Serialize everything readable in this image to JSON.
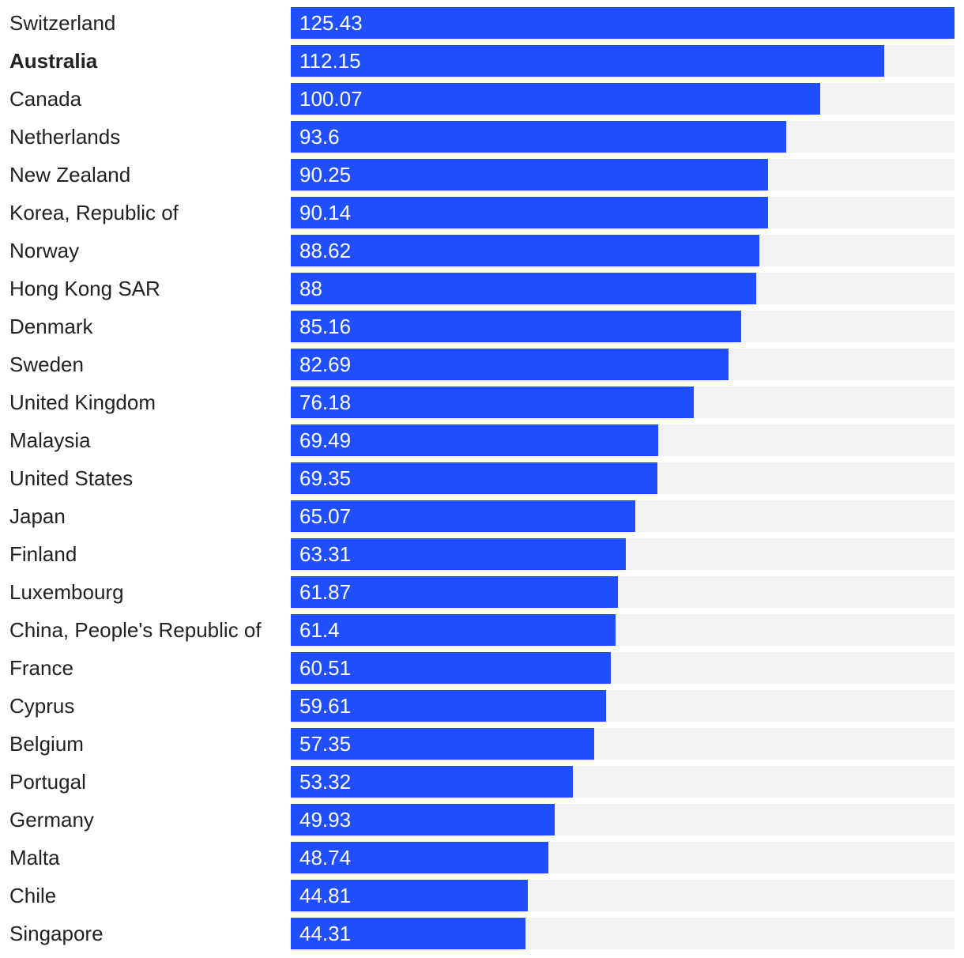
{
  "colors": {
    "bar": "#1f4fff",
    "track": "#f3f3f3",
    "label_text": "#222222",
    "value_text": "#ffffff"
  },
  "chart_data": {
    "type": "bar",
    "orientation": "horizontal",
    "xlim": [
      0,
      125.43
    ],
    "grid": false,
    "highlighted_category": "Australia",
    "categories": [
      "Switzerland",
      "Australia",
      "Canada",
      "Netherlands",
      "New Zealand",
      "Korea, Republic of",
      "Norway",
      "Hong Kong SAR",
      "Denmark",
      "Sweden",
      "United Kingdom",
      "Malaysia",
      "United States",
      "Japan",
      "Finland",
      "Luxembourg",
      "China, People's Republic of",
      "France",
      "Cyprus",
      "Belgium",
      "Portugal",
      "Germany",
      "Malta",
      "Chile",
      "Singapore"
    ],
    "values": [
      125.43,
      112.15,
      100.07,
      93.6,
      90.25,
      90.14,
      88.62,
      88,
      85.16,
      82.69,
      76.18,
      69.49,
      69.35,
      65.07,
      63.31,
      61.87,
      61.4,
      60.51,
      59.61,
      57.35,
      53.32,
      49.93,
      48.74,
      44.81,
      44.31
    ],
    "value_labels": [
      "125.43",
      "112.15",
      "100.07",
      "93.6",
      "90.25",
      "90.14",
      "88.62",
      "88",
      "85.16",
      "82.69",
      "76.18",
      "69.49",
      "69.35",
      "65.07",
      "63.31",
      "61.87",
      "61.4",
      "60.51",
      "59.61",
      "57.35",
      "53.32",
      "49.93",
      "48.74",
      "44.81",
      "44.31"
    ]
  }
}
